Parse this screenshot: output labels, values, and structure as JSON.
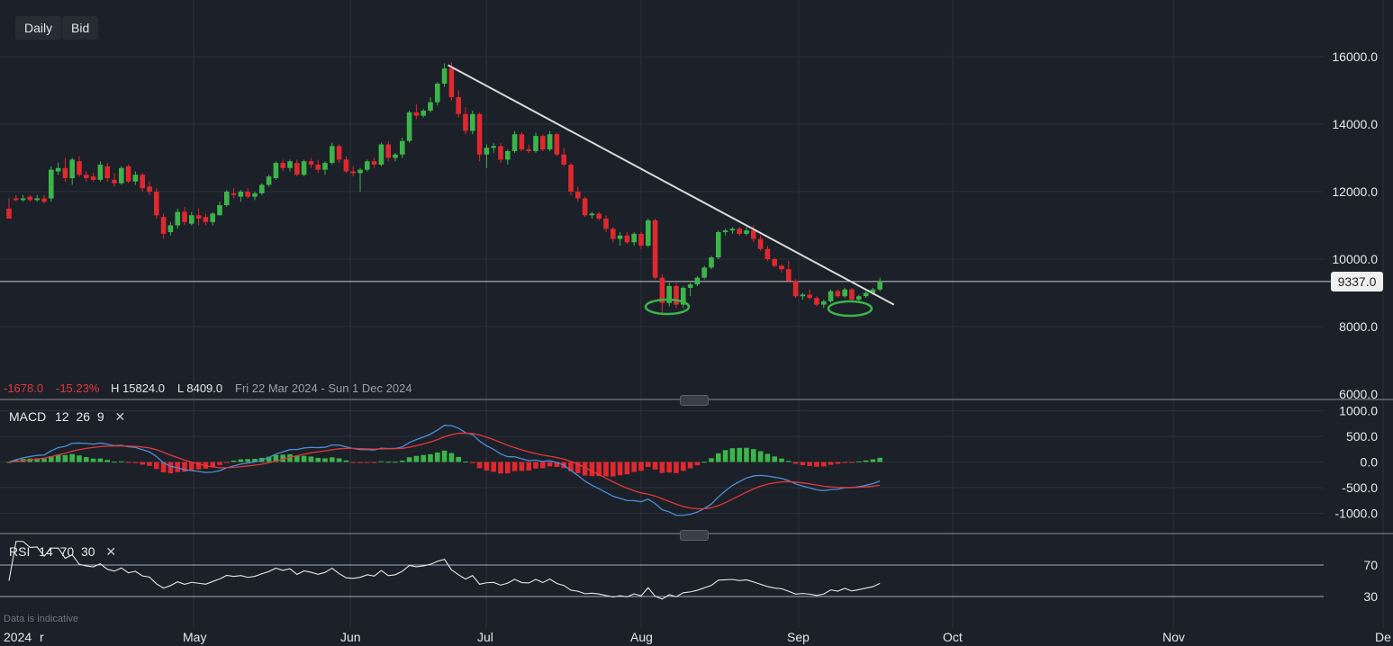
{
  "toolbar": {
    "interval": "Daily",
    "price_type": "Bid"
  },
  "info": {
    "change": "-1678.0",
    "change_pct": "-15.23%",
    "high": "H 15824.0",
    "low": "L 8409.0",
    "range": "Fri 22 Mar 2024 - Sun 1 Dec 2024"
  },
  "last_price_label": "9337.0",
  "macd_title": {
    "name": "MACD",
    "params": "12  26  9"
  },
  "rsi_title": {
    "name": "RSI",
    "params": "14  70  30"
  },
  "disclaimer": "Data is indicative",
  "colors": {
    "up": "#3bb54a",
    "down": "#e0282f",
    "macd": "#4a8fd8",
    "signal": "#e0383c",
    "rsi": "#e8e8e8",
    "trendline": "#d9d9d9",
    "background": "#1c2028"
  },
  "chart_data": [
    {
      "type": "candlestick",
      "name": "price",
      "y_ticks": [
        "16000.0",
        "14000.0",
        "12000.0",
        "10000.0",
        "8000.0",
        "6000.0"
      ],
      "ylim": [
        6000,
        16700
      ],
      "x_ticks": [
        "2024",
        "Apr",
        "May",
        "Jun",
        "Jul",
        "Aug",
        "Sep",
        "Oct",
        "Nov",
        "Dec"
      ],
      "last_price": 9337,
      "trendline": [
        [
          15750,
          0
        ],
        [
          8650,
          103
        ]
      ],
      "annotations": [
        "ellipse around August lows",
        "ellipse around September lows"
      ],
      "candles": [
        [
          11500,
          11800,
          11300,
          11200
        ],
        [
          11800,
          11900,
          11700,
          11750
        ],
        [
          11750,
          11900,
          11700,
          11800
        ],
        [
          11850,
          11900,
          11700,
          11750
        ],
        [
          11750,
          11900,
          11700,
          11800
        ],
        [
          11800,
          11900,
          11650,
          11700
        ],
        [
          11800,
          12750,
          11700,
          12650
        ],
        [
          12600,
          12850,
          12500,
          12700
        ],
        [
          12700,
          13000,
          12300,
          12400
        ],
        [
          12400,
          13000,
          12200,
          12950
        ],
        [
          12900,
          13050,
          12450,
          12500
        ],
        [
          12500,
          12600,
          12300,
          12400
        ],
        [
          12450,
          12550,
          12300,
          12350
        ],
        [
          12350,
          12900,
          12300,
          12800
        ],
        [
          12750,
          12850,
          12300,
          12400
        ],
        [
          12350,
          12550,
          12150,
          12250
        ],
        [
          12250,
          12750,
          12200,
          12700
        ],
        [
          12750,
          12800,
          12250,
          12300
        ],
        [
          12300,
          12600,
          12200,
          12500
        ],
        [
          12500,
          12550,
          12000,
          12100
        ],
        [
          12150,
          12300,
          11900,
          12000
        ],
        [
          12000,
          12100,
          11200,
          11300
        ],
        [
          11250,
          11350,
          10600,
          10750
        ],
        [
          10800,
          11100,
          10700,
          11000
        ],
        [
          11000,
          11500,
          10900,
          11400
        ],
        [
          11400,
          11550,
          11000,
          11100
        ],
        [
          11050,
          11400,
          11000,
          11300
        ],
        [
          11300,
          11500,
          11000,
          11200
        ],
        [
          11250,
          11350,
          11000,
          11100
        ],
        [
          11100,
          11400,
          11000,
          11350
        ],
        [
          11300,
          11700,
          11300,
          11600
        ],
        [
          11600,
          12050,
          11550,
          12000
        ],
        [
          11950,
          12100,
          11800,
          11900
        ],
        [
          11850,
          12050,
          11700,
          12000
        ],
        [
          12000,
          12100,
          11800,
          11850
        ],
        [
          11850,
          12000,
          11750,
          11950
        ],
        [
          11950,
          12250,
          11900,
          12200
        ],
        [
          12200,
          12500,
          12150,
          12450
        ],
        [
          12400,
          12900,
          12350,
          12850
        ],
        [
          12850,
          12950,
          12600,
          12700
        ],
        [
          12700,
          12950,
          12600,
          12900
        ],
        [
          12850,
          12950,
          12450,
          12500
        ],
        [
          12500,
          12950,
          12450,
          12900
        ],
        [
          12900,
          13000,
          12700,
          12800
        ],
        [
          12800,
          12950,
          12550,
          12650
        ],
        [
          12650,
          12900,
          12500,
          12850
        ],
        [
          12850,
          13450,
          12800,
          13350
        ],
        [
          13350,
          13400,
          12850,
          12950
        ],
        [
          12950,
          13050,
          12550,
          12600
        ],
        [
          12600,
          12750,
          12450,
          12550
        ],
        [
          12550,
          12700,
          12000,
          12650
        ],
        [
          12650,
          12950,
          12600,
          12900
        ],
        [
          12900,
          13000,
          12700,
          12800
        ],
        [
          12800,
          13450,
          12750,
          13400
        ],
        [
          13400,
          13500,
          12900,
          13000
        ],
        [
          13000,
          13150,
          12900,
          13100
        ],
        [
          13100,
          13600,
          13000,
          13500
        ],
        [
          13500,
          14400,
          13450,
          14350
        ],
        [
          14350,
          14600,
          14150,
          14250
        ],
        [
          14250,
          14450,
          14200,
          14400
        ],
        [
          14400,
          14800,
          14350,
          14650
        ],
        [
          14650,
          15250,
          14550,
          15200
        ],
        [
          15200,
          15800,
          15100,
          15650
        ],
        [
          15650,
          15824,
          14700,
          14800
        ],
        [
          14800,
          15000,
          14200,
          14300
        ],
        [
          14300,
          14500,
          13700,
          13800
        ],
        [
          13800,
          14400,
          13700,
          14300
        ],
        [
          14300,
          14350,
          12900,
          13100
        ],
        [
          13100,
          13400,
          12700,
          13300
        ],
        [
          13300,
          13450,
          13150,
          13350
        ],
        [
          13350,
          13450,
          12850,
          12950
        ],
        [
          12950,
          13250,
          12800,
          13200
        ],
        [
          13200,
          13800,
          13150,
          13700
        ],
        [
          13700,
          13750,
          13200,
          13250
        ],
        [
          13250,
          13400,
          13150,
          13200
        ],
        [
          13200,
          13750,
          13150,
          13650
        ],
        [
          13650,
          13700,
          13200,
          13250
        ],
        [
          13250,
          13800,
          13200,
          13700
        ],
        [
          13700,
          13750,
          13050,
          13100
        ],
        [
          13100,
          13300,
          12750,
          12800
        ],
        [
          12800,
          12850,
          11900,
          12000
        ],
        [
          12000,
          12150,
          11700,
          11800
        ],
        [
          11800,
          11850,
          11250,
          11300
        ],
        [
          11300,
          11400,
          11200,
          11350
        ],
        [
          11350,
          11400,
          11150,
          11200
        ],
        [
          11200,
          11300,
          10800,
          10900
        ],
        [
          10900,
          10950,
          10500,
          10600
        ],
        [
          10600,
          10800,
          10400,
          10700
        ],
        [
          10700,
          10800,
          10450,
          10500
        ],
        [
          10500,
          10800,
          10400,
          10750
        ],
        [
          10750,
          10800,
          10300,
          10400
        ],
        [
          10400,
          11200,
          10350,
          11150
        ],
        [
          11150,
          11200,
          9400,
          9450
        ],
        [
          9450,
          9550,
          8409,
          8700
        ],
        [
          8700,
          9300,
          8600,
          9200
        ],
        [
          9200,
          9300,
          8550,
          8650
        ],
        [
          8650,
          9200,
          8550,
          9150
        ],
        [
          9150,
          9300,
          8900,
          9250
        ],
        [
          9250,
          9500,
          9200,
          9450
        ],
        [
          9450,
          9800,
          9400,
          9750
        ],
        [
          9750,
          10100,
          9700,
          10050
        ],
        [
          10050,
          10850,
          10000,
          10800
        ],
        [
          10800,
          10900,
          10700,
          10850
        ],
        [
          10850,
          10950,
          10750,
          10900
        ],
        [
          10900,
          10950,
          10700,
          10750
        ],
        [
          10750,
          10950,
          10700,
          10850
        ],
        [
          10850,
          11000,
          10500,
          10600
        ],
        [
          10600,
          10700,
          10250,
          10300
        ],
        [
          10300,
          10400,
          9950,
          10000
        ],
        [
          10000,
          10050,
          9750,
          9800
        ],
        [
          9800,
          9850,
          9600,
          9700
        ],
        [
          9700,
          9950,
          9300,
          9350
        ],
        [
          9350,
          9400,
          8850,
          8900
        ],
        [
          8900,
          9000,
          8800,
          8950
        ],
        [
          8950,
          9100,
          8800,
          8850
        ],
        [
          8850,
          8900,
          8600,
          8650
        ],
        [
          8650,
          8800,
          8550,
          8750
        ],
        [
          8750,
          9100,
          8700,
          9050
        ],
        [
          9050,
          9100,
          8850,
          8900
        ],
        [
          8900,
          9150,
          8850,
          9100
        ],
        [
          9100,
          9150,
          8750,
          8800
        ],
        [
          8800,
          8950,
          8750,
          8900
        ],
        [
          8900,
          9050,
          8850,
          9000
        ],
        [
          9000,
          9150,
          8950,
          9100
        ],
        [
          9100,
          9450,
          9050,
          9337
        ]
      ]
    },
    {
      "type": "bar+line",
      "name": "MACD",
      "y_ticks": [
        "1000.0",
        "500.0",
        "0.0",
        "-500.0",
        "-1000.0"
      ],
      "ylim": [
        -1150,
        1100
      ]
    },
    {
      "type": "line",
      "name": "RSI",
      "y_ticks": [
        "70",
        "30"
      ],
      "ylim": [
        10,
        100
      ]
    }
  ]
}
